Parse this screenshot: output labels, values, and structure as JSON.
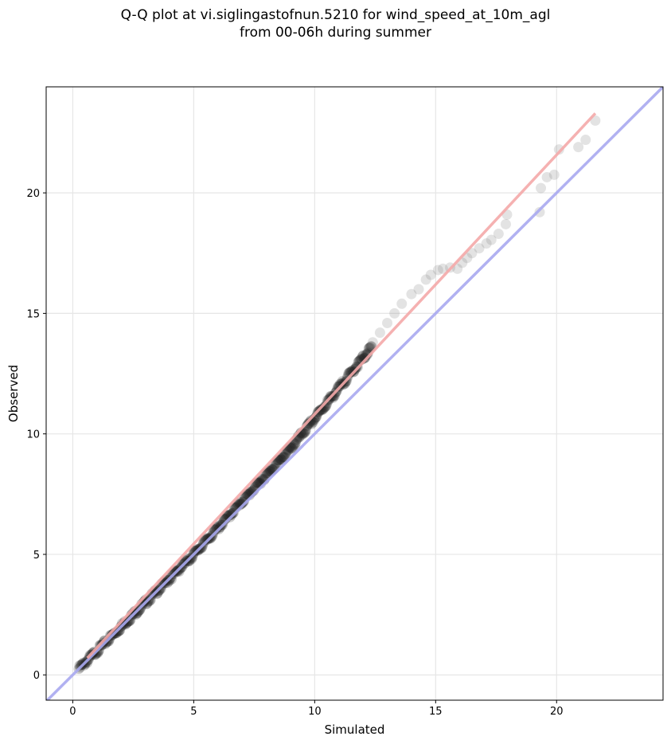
{
  "chart_data": {
    "type": "scatter",
    "title": [
      "Q-Q plot at vi.siglingastofnun.5210 for wind_speed_at_10m_agl",
      "from 00-06h during summer"
    ],
    "xlabel": "Simulated",
    "ylabel": "Observed",
    "xlim": [
      -1.1,
      24.4
    ],
    "ylim": [
      -1.05,
      24.4
    ],
    "xticks": [
      0,
      5,
      10,
      15,
      20
    ],
    "yticks": [
      0,
      5,
      10,
      15,
      20
    ],
    "grid": true,
    "reference_line": {
      "slope": 1,
      "intercept": 0,
      "color": "#a8a8f0"
    },
    "fit_line": {
      "x": [
        0.6,
        21.6
      ],
      "y": [
        0.7,
        23.3
      ],
      "color": "#f4a8a8"
    },
    "marker_color": "#808080",
    "core_markers_color": "#202020",
    "sparse_points": [
      [
        15.6,
        16.9
      ],
      [
        15.9,
        16.85
      ],
      [
        16.1,
        17.1
      ],
      [
        16.3,
        17.3
      ],
      [
        16.5,
        17.5
      ],
      [
        16.8,
        17.7
      ],
      [
        17.1,
        17.9
      ],
      [
        17.3,
        18.05
      ],
      [
        17.6,
        18.3
      ],
      [
        17.9,
        18.7
      ],
      [
        17.95,
        19.1
      ],
      [
        19.3,
        19.2
      ],
      [
        19.35,
        20.2
      ],
      [
        19.6,
        20.65
      ],
      [
        19.9,
        20.75
      ],
      [
        20.1,
        21.8
      ],
      [
        20.9,
        21.9
      ],
      [
        21.2,
        22.2
      ],
      [
        21.6,
        23.0
      ],
      [
        14.0,
        15.8
      ],
      [
        14.3,
        16.0
      ],
      [
        14.6,
        16.4
      ],
      [
        14.8,
        16.6
      ],
      [
        15.1,
        16.8
      ],
      [
        15.3,
        16.85
      ],
      [
        13.6,
        15.4
      ],
      [
        13.3,
        15.0
      ],
      [
        13.0,
        14.6
      ],
      [
        12.7,
        14.2
      ],
      [
        12.4,
        13.8
      ]
    ]
  }
}
